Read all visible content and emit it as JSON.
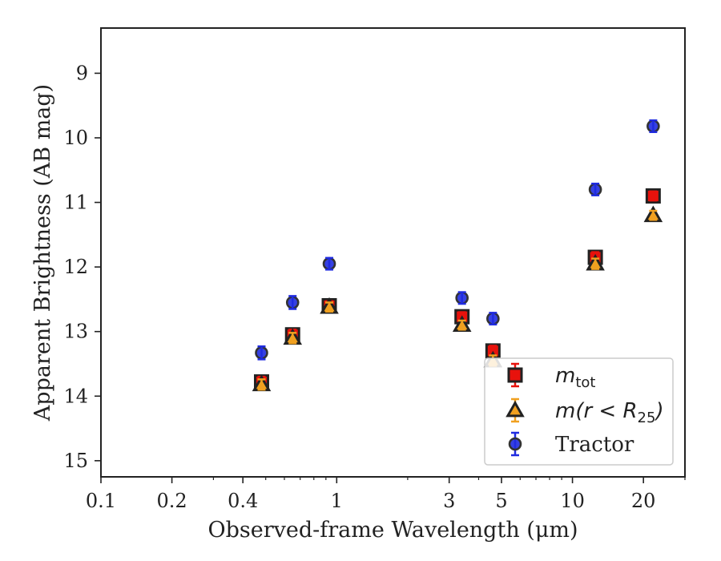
{
  "chart_data": {
    "type": "scatter",
    "xlabel": "Observed-frame Wavelength (μm)",
    "ylabel": "Apparent Brightness (AB mag)",
    "xscale": "log",
    "xlim": [
      0.1,
      30
    ],
    "ylim": [
      15.25,
      8.3
    ],
    "y_inverted": true,
    "grid": false,
    "legend_position": "lower-right",
    "x_ticks": [
      0.1,
      0.2,
      0.4,
      1,
      3,
      5,
      10,
      20
    ],
    "x_tick_labels": [
      "0.1",
      "0.2",
      "0.4",
      "1",
      "3",
      "5",
      "10",
      "20"
    ],
    "y_ticks": [
      9,
      10,
      11,
      12,
      13,
      14,
      15
    ],
    "y_tick_labels": [
      "9",
      "10",
      "11",
      "12",
      "13",
      "14",
      "15"
    ],
    "series": [
      {
        "name": "m_tot",
        "legend_main": "m",
        "legend_sub": "tot",
        "marker": "square",
        "color": "#e8120c",
        "error_color": "#e8120c",
        "x": [
          0.48,
          0.65,
          0.93,
          3.4,
          4.6,
          12.5,
          22
        ],
        "y": [
          13.78,
          13.05,
          12.6,
          12.77,
          13.3,
          11.85,
          10.9
        ],
        "err": [
          0.08,
          0.08,
          0.07,
          0.07,
          0.08,
          0.08,
          0.07
        ]
      },
      {
        "name": "m(r < R25)",
        "legend_main": "m(r < R",
        "legend_sub": "25",
        "legend_tail": ")",
        "marker": "triangle",
        "color": "#f0a020",
        "error_color": "#f0a020",
        "x": [
          0.48,
          0.65,
          0.93,
          3.4,
          4.6,
          12.5,
          22
        ],
        "y": [
          13.82,
          13.1,
          12.62,
          12.9,
          13.45,
          11.95,
          11.2
        ],
        "err": [
          0.08,
          0.08,
          0.07,
          0.07,
          0.08,
          0.08,
          0.07
        ]
      },
      {
        "name": "Tractor",
        "marker": "circle",
        "color": "#1f2be0",
        "error_color": "#1f2be0",
        "x": [
          0.48,
          0.65,
          0.93,
          3.4,
          4.6,
          12.5,
          22
        ],
        "y": [
          13.33,
          12.55,
          11.95,
          12.48,
          12.8,
          10.8,
          9.82
        ],
        "err": [
          0.1,
          0.1,
          0.09,
          0.09,
          0.09,
          0.09,
          0.09
        ]
      }
    ]
  }
}
